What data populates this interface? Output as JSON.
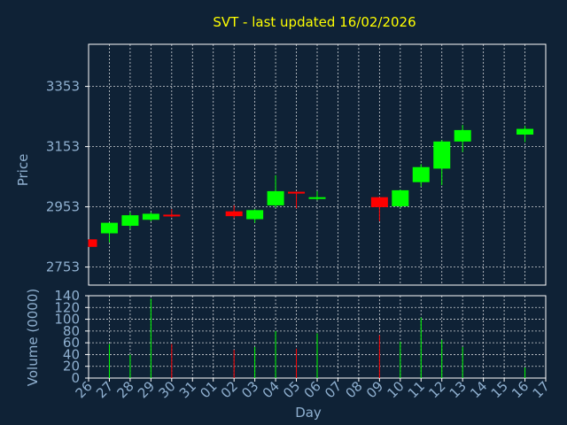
{
  "chart_data": {
    "type": "candlestick",
    "title": "SVT - last updated 16/02/2026",
    "xlabel": "Day",
    "colors": {
      "background": "#0f2236",
      "title": "#ffff00",
      "axis_text": "#8fb0d0",
      "grid": "#ffffff",
      "up": "#00ff00",
      "down": "#ff0000"
    },
    "x_tick_labels": [
      "26",
      "27",
      "28",
      "29",
      "30",
      "31",
      "01",
      "02",
      "03",
      "04",
      "05",
      "06",
      "07",
      "08",
      "09",
      "10",
      "11",
      "12",
      "13",
      "14",
      "15",
      "16",
      "17"
    ],
    "price_panel": {
      "ylabel": "Price",
      "ylim": [
        2693,
        3493
      ],
      "yticks": [
        2753,
        2953,
        3153,
        3353
      ],
      "grid": true
    },
    "volume_panel": {
      "ylabel": "Volume (0000)",
      "ylim": [
        0,
        140
      ],
      "yticks": [
        0,
        20,
        40,
        60,
        80,
        100,
        120,
        140
      ],
      "grid": true
    },
    "candles": [
      {
        "day": "26",
        "open": 2845,
        "close": 2820,
        "high": 2845,
        "low": 2820,
        "volume": 0
      },
      {
        "day": "27",
        "open": 2865,
        "close": 2900,
        "high": 2900,
        "low": 2835,
        "volume": 58
      },
      {
        "day": "28",
        "open": 2890,
        "close": 2925,
        "high": 2935,
        "low": 2880,
        "volume": 40
      },
      {
        "day": "29",
        "open": 2910,
        "close": 2930,
        "high": 2935,
        "low": 2905,
        "volume": 135
      },
      {
        "day": "30",
        "open": 2927,
        "close": 2925,
        "high": 2945,
        "low": 2918,
        "volume": 58
      },
      {
        "day": "02",
        "open": 2938,
        "close": 2922,
        "high": 2958,
        "low": 2915,
        "volume": 48
      },
      {
        "day": "03",
        "open": 2912,
        "close": 2942,
        "high": 2945,
        "low": 2900,
        "volume": 53
      },
      {
        "day": "04",
        "open": 2958,
        "close": 3005,
        "high": 3058,
        "low": 2950,
        "volume": 80
      },
      {
        "day": "05",
        "open": 3003,
        "close": 3000,
        "high": 3003,
        "low": 2948,
        "volume": 50
      },
      {
        "day": "06",
        "open": 2982,
        "close": 2985,
        "high": 3005,
        "low": 2975,
        "volume": 76
      },
      {
        "day": "09",
        "open": 2985,
        "close": 2952,
        "high": 2985,
        "low": 2905,
        "volume": 73
      },
      {
        "day": "10",
        "open": 2955,
        "close": 3008,
        "high": 3010,
        "low": 2950,
        "volume": 62
      },
      {
        "day": "11",
        "open": 3035,
        "close": 3085,
        "high": 3095,
        "low": 3020,
        "volume": 103
      },
      {
        "day": "12",
        "open": 3080,
        "close": 3170,
        "high": 3175,
        "low": 3025,
        "volume": 65
      },
      {
        "day": "13",
        "open": 3170,
        "close": 3208,
        "high": 3225,
        "low": 3135,
        "volume": 53
      },
      {
        "day": "16",
        "open": 3193,
        "close": 3212,
        "high": 3222,
        "low": 3168,
        "volume": 18
      }
    ]
  }
}
